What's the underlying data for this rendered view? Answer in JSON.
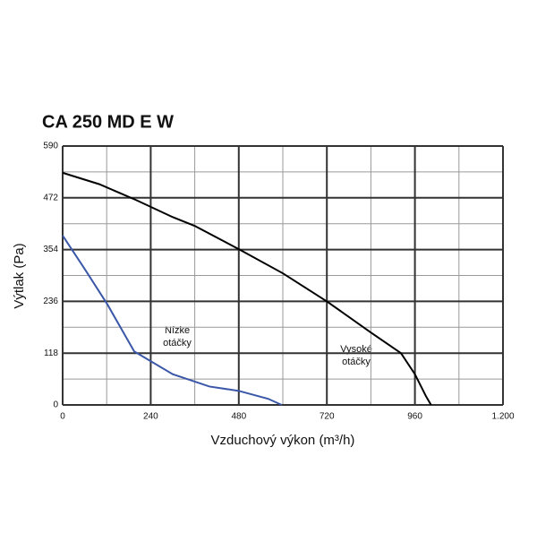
{
  "chart_data": {
    "type": "line",
    "title": "CA 250 MD E W",
    "x_label": "Vzduchový výkon (m³/h)",
    "y_label": "Výtlak (Pa)",
    "xlim": [
      0,
      1200
    ],
    "ylim": [
      0,
      590
    ],
    "xticks": [
      0,
      240,
      480,
      720,
      960,
      {
        "value": 1200,
        "label": "1.200"
      }
    ],
    "yticks": [
      0,
      118,
      236,
      354,
      472,
      590
    ],
    "grid": true,
    "series": [
      {
        "color": "#000000",
        "x": [
          0,
          100,
          200,
          300,
          360,
          480,
          600,
          720,
          840,
          922,
          960,
          990,
          1004
        ],
        "values": [
          529,
          503,
          467,
          428,
          408,
          355,
          300,
          236,
          165,
          118,
          70,
          20,
          0
        ]
      },
      {
        "color": "#3b57a8",
        "x": [
          0,
          60,
          122,
          195,
          300,
          400,
          480,
          560,
          597
        ],
        "values": [
          386,
          310,
          229,
          122,
          70,
          42,
          32,
          14,
          0
        ]
      }
    ],
    "annotations": [
      "Nízke",
      "otáčky",
      "Vysoké",
      "otáčky"
    ]
  }
}
